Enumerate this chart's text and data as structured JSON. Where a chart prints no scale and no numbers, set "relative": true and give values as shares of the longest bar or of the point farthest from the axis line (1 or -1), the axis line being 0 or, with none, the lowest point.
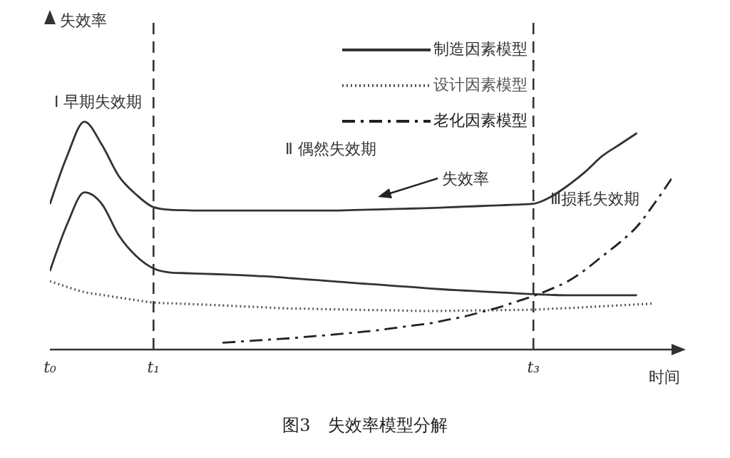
{
  "chart_data": {
    "type": "line",
    "relative": true,
    "title": "图3　失效率模型分解",
    "xlabel": "时间",
    "categories": [
      "t₀",
      null,
      null,
      null,
      null,
      null,
      "t₁",
      null,
      null,
      null,
      null,
      null,
      null,
      null,
      null,
      null,
      null,
      null,
      null,
      null,
      null,
      null,
      null,
      null,
      null,
      null,
      null,
      null,
      "t₃",
      null,
      null,
      null,
      null,
      null,
      null,
      null,
      null
    ],
    "grid": false,
    "legend": "top right",
    "marker": "none",
    "series": [
      {
        "color": "#333333",
        "line_style": "solid",
        "values": [
          0.638,
          0.85,
          1,
          0.9,
          0.76,
          0.68,
          0.625,
          0.613,
          0.611,
          0.61,
          0.61,
          0.61,
          0.61,
          0.61,
          0.61,
          0.61,
          0.61,
          0.611,
          0.613,
          0.615,
          0.617,
          0.619,
          0.621,
          0.624,
          0.627,
          0.63,
          0.633,
          0.636,
          0.64,
          0.67,
          0.72,
          0.78,
          0.85,
          0.9,
          0.95,
          null,
          null
        ]
      },
      {
        "name": "制造因素模型",
        "color": "#333333",
        "line_style": "solid",
        "values": [
          0.344,
          0.55,
          0.69,
          0.64,
          0.5,
          0.41,
          0.356,
          0.338,
          0.335,
          0.332,
          0.33,
          0.327,
          0.323,
          0.319,
          0.313,
          0.307,
          0.302,
          0.296,
          0.29,
          0.285,
          0.279,
          0.274,
          0.268,
          0.263,
          0.259,
          0.255,
          0.251,
          0.247,
          0.243,
          0.24,
          0.238,
          0.238,
          0.238,
          0.238,
          0.238,
          null,
          null
        ]
      },
      {
        "name": "设计因素模型",
        "color": "#555555",
        "line_style": "dotted",
        "values": [
          0.3,
          0.275,
          0.252,
          0.24,
          0.228,
          0.217,
          0.206,
          0.203,
          0.2,
          0.197,
          0.194,
          0.19,
          0.187,
          0.183,
          0.18,
          0.179,
          0.177,
          0.176,
          0.174,
          0.173,
          0.172,
          0.17,
          0.169,
          0.17,
          0.171,
          0.172,
          0.173,
          0.174,
          0.175,
          0.179,
          0.182,
          0.186,
          0.19,
          0.194,
          0.198,
          0.202,
          null
        ]
      },
      {
        "name": "老化因素模型",
        "color": "#222222",
        "line_style": "dashed",
        "values": [
          null,
          null,
          null,
          null,
          null,
          null,
          null,
          null,
          null,
          null,
          0.03,
          0.035,
          0.04,
          0.045,
          0.05,
          0.057,
          0.063,
          0.07,
          0.077,
          0.085,
          0.095,
          0.105,
          0.115,
          0.13,
          0.145,
          0.165,
          0.185,
          0.21,
          0.235,
          0.265,
          0.3,
          0.35,
          0.41,
          0.47,
          0.54,
          0.64,
          0.75
        ]
      }
    ],
    "ref_lines": [
      {
        "axis": "x",
        "value": "t₁",
        "line_style": "dashed",
        "color": "#333333"
      },
      {
        "axis": "x",
        "value": "t₃",
        "line_style": "dashed",
        "color": "#333333"
      }
    ],
    "annotations": [
      "Ⅰ 早期失效期",
      "Ⅱ 偶然失效期",
      "Ⅲ损耗失效期",
      "失效率",
      "失效率"
    ]
  }
}
